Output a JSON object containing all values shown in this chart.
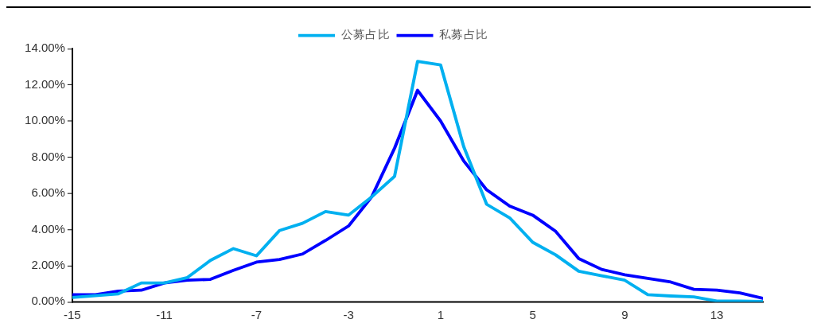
{
  "chart_data": {
    "type": "line",
    "x": [
      -15,
      -14,
      -13,
      -12,
      -11,
      -10,
      -9,
      -8,
      -7,
      -6,
      -5,
      -4,
      -3,
      -2,
      -1,
      0,
      1,
      2,
      3,
      4,
      5,
      6,
      7,
      8,
      9,
      10,
      11,
      12,
      13,
      14,
      15
    ],
    "series": [
      {
        "name": "公募占比",
        "color": "#00b0f0",
        "values": [
          0.25,
          0.35,
          0.45,
          1.05,
          1.05,
          1.35,
          2.3,
          2.95,
          2.55,
          3.95,
          4.35,
          5.0,
          4.8,
          5.8,
          6.95,
          13.3,
          13.1,
          8.6,
          5.4,
          4.65,
          3.3,
          2.6,
          1.7,
          1.45,
          1.2,
          0.4,
          0.33,
          0.28,
          0.05,
          0.05,
          0.03
        ]
      },
      {
        "name": "私募占比",
        "color": "#0000ff",
        "values": [
          0.4,
          0.4,
          0.6,
          0.65,
          1.05,
          1.2,
          1.25,
          1.75,
          2.2,
          2.35,
          2.65,
          3.4,
          4.2,
          5.8,
          8.5,
          11.7,
          10.0,
          7.8,
          6.2,
          5.3,
          4.8,
          3.9,
          2.4,
          1.8,
          1.5,
          1.3,
          1.1,
          0.7,
          0.65,
          0.5,
          0.2
        ]
      }
    ],
    "xlim": [
      -15,
      15
    ],
    "xticks": [
      -15,
      -11,
      -7,
      -3,
      1,
      5,
      9,
      13
    ],
    "ylim": [
      0,
      14
    ],
    "yticks": [
      {
        "value": 0,
        "label": "0.00%"
      },
      {
        "value": 2,
        "label": "2.00%"
      },
      {
        "value": 4,
        "label": "4.00%"
      },
      {
        "value": 6,
        "label": "6.00%"
      },
      {
        "value": 8,
        "label": "8.00%"
      },
      {
        "value": 10,
        "label": "10.00%"
      },
      {
        "value": 12,
        "label": "12.00%"
      },
      {
        "value": 14,
        "label": "14.00%"
      }
    ],
    "grid": false,
    "legend": "top",
    "marker": "none",
    "line_style": "solid"
  }
}
